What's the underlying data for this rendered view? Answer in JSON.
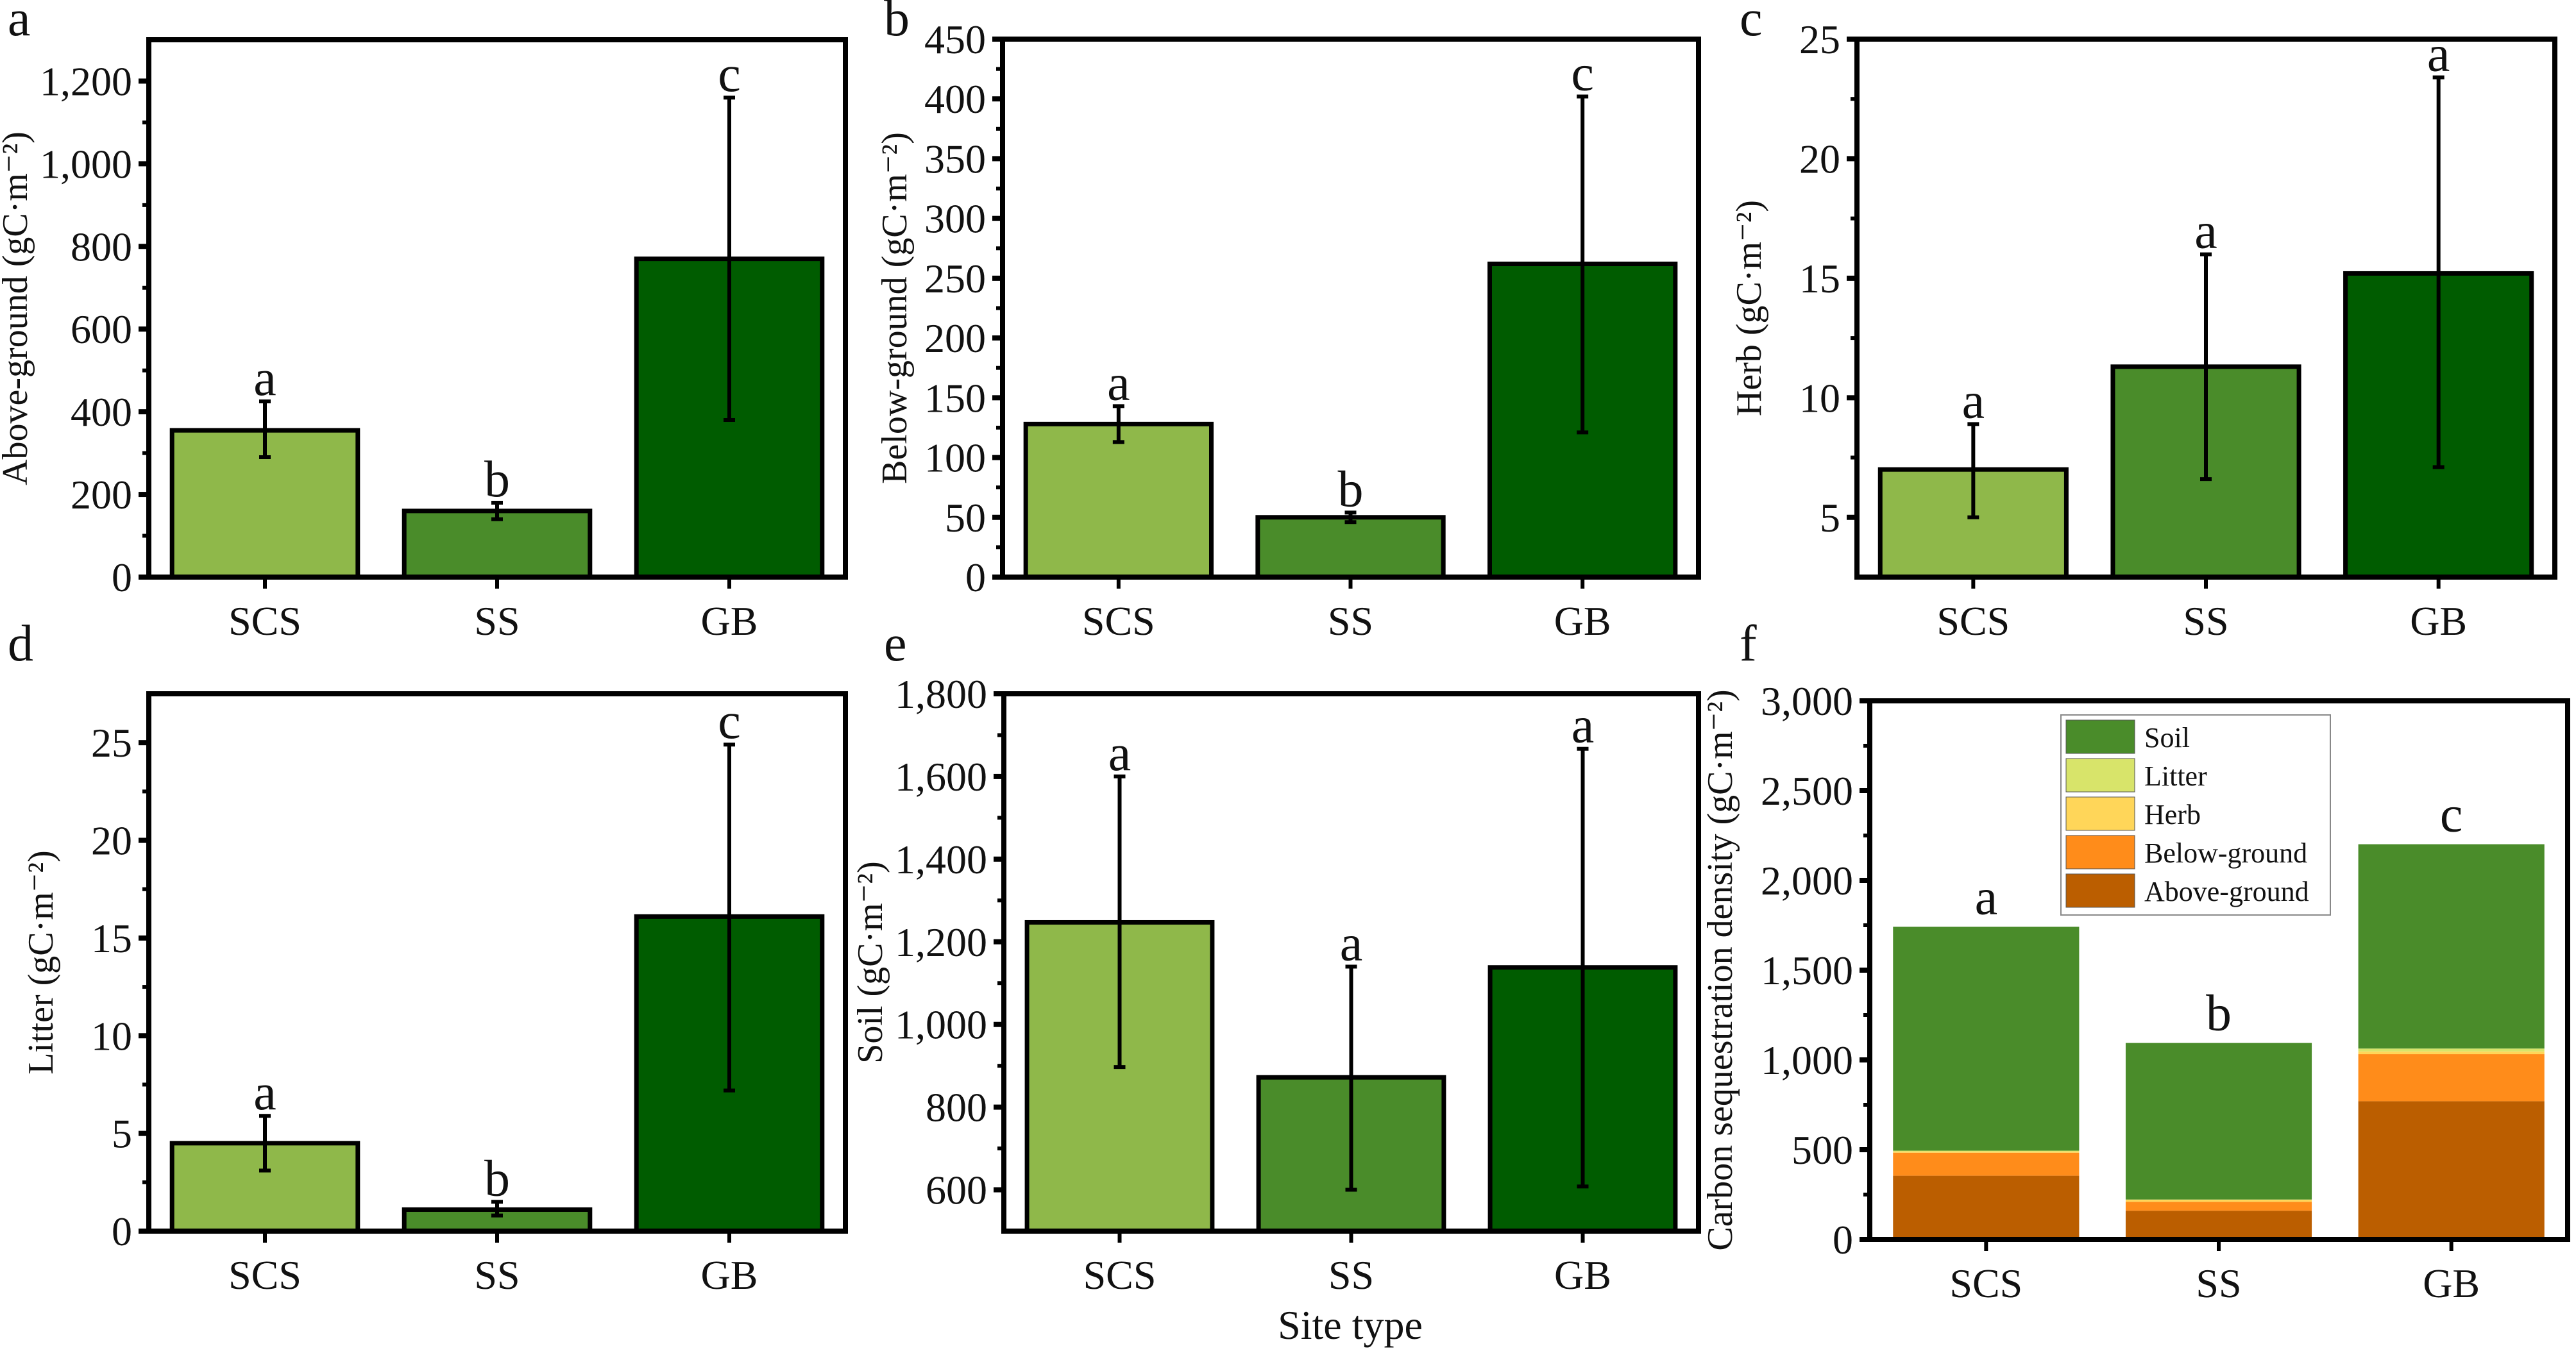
{
  "figure": {
    "common_xlabel": "Site type",
    "colors": {
      "SCS": "#8fb84a",
      "SS": "#4a8c2a",
      "GB": "#005c00",
      "axis": "#000000",
      "error_bar": "#000000"
    }
  },
  "chart_data": [
    {
      "panel": "a",
      "type": "bar",
      "title": "",
      "xlabel": "",
      "ylabel": "Above-ground (gC·m⁻²)",
      "categories": [
        "SCS",
        "SS",
        "GB"
      ],
      "values": [
        355,
        160,
        770
      ],
      "error_low": [
        290,
        140,
        380
      ],
      "error_high": [
        425,
        180,
        1160
      ],
      "significance": [
        "a",
        "b",
        "c"
      ],
      "ylim": [
        0,
        1300
      ],
      "yticks": [
        0,
        200,
        400,
        600,
        800,
        1000,
        1200
      ],
      "ytick_labels": [
        "0",
        "200",
        "400",
        "600",
        "800",
        "1,000",
        "1,200"
      ],
      "grid": false
    },
    {
      "panel": "b",
      "type": "bar",
      "title": "",
      "xlabel": "",
      "ylabel": "Below-ground (gC·m⁻²)",
      "categories": [
        "SCS",
        "SS",
        "GB"
      ],
      "values": [
        128,
        50,
        262
      ],
      "error_low": [
        113,
        46,
        121
      ],
      "error_high": [
        143,
        54,
        402
      ],
      "significance": [
        "a",
        "b",
        "c"
      ],
      "ylim": [
        0,
        450
      ],
      "yticks": [
        0,
        50,
        100,
        150,
        200,
        250,
        300,
        350,
        400,
        450
      ],
      "ytick_labels": [
        "0",
        "50",
        "100",
        "150",
        "200",
        "250",
        "300",
        "350",
        "400",
        "450"
      ],
      "grid": false
    },
    {
      "panel": "c",
      "type": "bar",
      "title": "",
      "xlabel": "",
      "ylabel": "Herb (gC·m⁻²)",
      "categories": [
        "SCS",
        "SS",
        "GB"
      ],
      "values": [
        7.0,
        11.3,
        15.2
      ],
      "error_low": [
        5.0,
        6.6,
        7.1
      ],
      "error_high": [
        8.9,
        16.0,
        23.4
      ],
      "significance": [
        "a",
        "a",
        "a"
      ],
      "ylim": [
        2.5,
        25
      ],
      "yticks": [
        5,
        10,
        15,
        20,
        25
      ],
      "ytick_labels": [
        "5",
        "10",
        "15",
        "20",
        "25"
      ],
      "grid": false
    },
    {
      "panel": "d",
      "type": "bar",
      "title": "",
      "xlabel": "",
      "ylabel": "Litter (gC·m⁻²)",
      "categories": [
        "SCS",
        "SS",
        "GB"
      ],
      "values": [
        4.5,
        1.1,
        16.1
      ],
      "error_low": [
        3.1,
        0.8,
        7.2
      ],
      "error_high": [
        5.9,
        1.5,
        24.9
      ],
      "significance": [
        "a",
        "b",
        "c"
      ],
      "ylim": [
        0,
        27.5
      ],
      "yticks": [
        0,
        5,
        10,
        15,
        20,
        25
      ],
      "ytick_labels": [
        "0",
        "5",
        "10",
        "15",
        "20",
        "25"
      ],
      "grid": false
    },
    {
      "panel": "e",
      "type": "bar",
      "title": "",
      "xlabel": "Site type",
      "ylabel": "Soil (gC·m⁻²)",
      "categories": [
        "SCS",
        "SS",
        "GB"
      ],
      "values": [
        1247,
        872,
        1138
      ],
      "error_low": [
        897,
        600,
        608
      ],
      "error_high": [
        1600,
        1140,
        1667
      ],
      "significance": [
        "a",
        "a",
        "a"
      ],
      "ylim": [
        500,
        1800
      ],
      "yticks": [
        600,
        800,
        1000,
        1200,
        1400,
        1600,
        1800
      ],
      "ytick_labels": [
        "600",
        "800",
        "1,000",
        "1,200",
        "1,400",
        "1,600",
        "1,800"
      ],
      "grid": false
    },
    {
      "panel": "f",
      "type": "bar",
      "stacked": true,
      "title": "",
      "xlabel": "",
      "ylabel": "Carbon sequestration density (gC·m⁻²)",
      "categories": [
        "SCS",
        "SS",
        "GB"
      ],
      "series": [
        {
          "name": "Above-ground",
          "color": "#bb5e00",
          "values": [
            355,
            160,
            770
          ]
        },
        {
          "name": "Below-ground",
          "color": "#ff8c1a",
          "values": [
            128,
            50,
            262
          ]
        },
        {
          "name": "Herb",
          "color": "#ffd659",
          "values": [
            7.0,
            11.3,
            15.2
          ]
        },
        {
          "name": "Litter",
          "color": "#d8e46a",
          "values": [
            4.5,
            1.1,
            16.1
          ]
        },
        {
          "name": "Soil",
          "color": "#4a8c2a",
          "values": [
            1247,
            872,
            1138
          ]
        }
      ],
      "legend_order": [
        "Soil",
        "Litter",
        "Herb",
        "Below-ground",
        "Above-ground"
      ],
      "legend_position": "top-center",
      "significance": [
        "a",
        "b",
        "c"
      ],
      "ylim": [
        0,
        3000
      ],
      "yticks": [
        0,
        500,
        1000,
        1500,
        2000,
        2500,
        3000
      ],
      "ytick_labels": [
        "0",
        "500",
        "1,000",
        "1,500",
        "2,000",
        "2,500",
        "3,000"
      ],
      "grid": false
    }
  ]
}
